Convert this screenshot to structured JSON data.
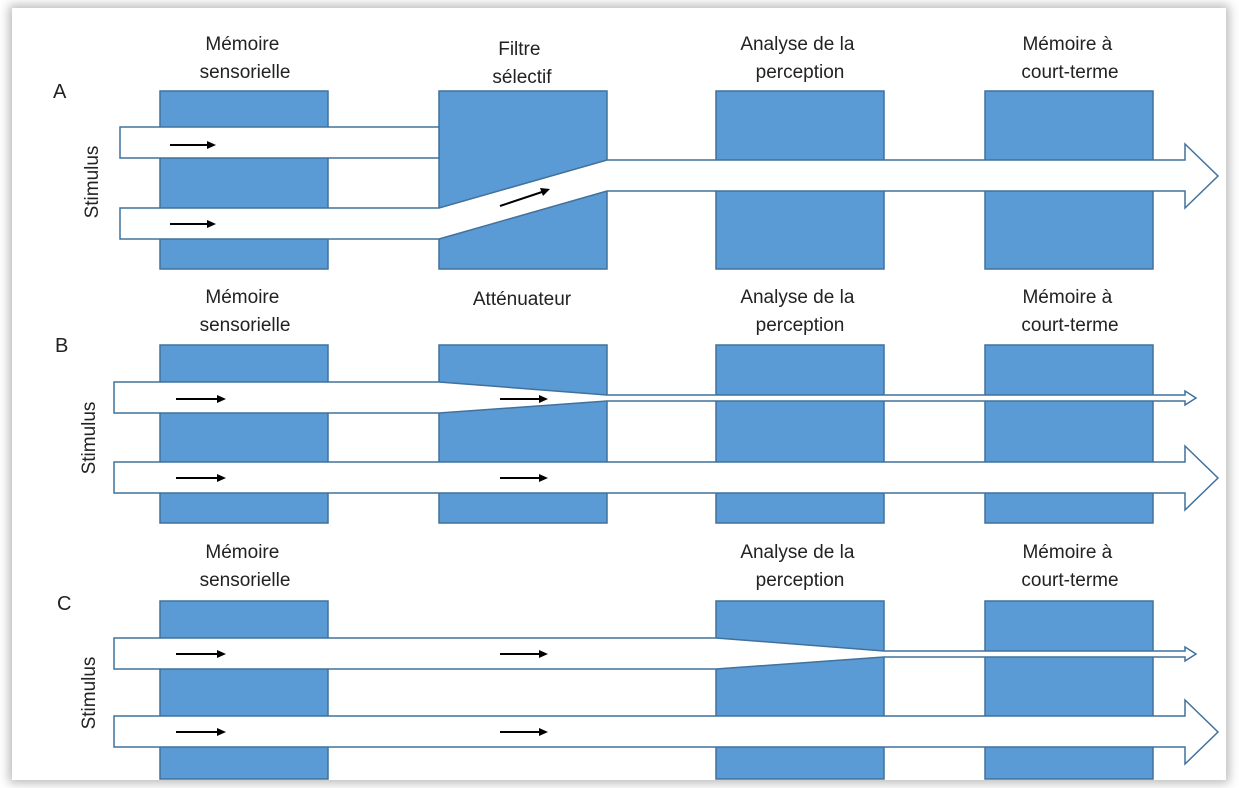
{
  "panels": [
    {
      "letter": "A",
      "stimulus": "Stimulus",
      "stage1": [
        "Mémoire",
        "sensorielle"
      ],
      "stage2": [
        "Filtre",
        "sélectif"
      ],
      "stage3": [
        "Analyse de la",
        "perception"
      ],
      "stage4": [
        "Mémoire à",
        "court-terme"
      ]
    },
    {
      "letter": "B",
      "stimulus": "Stimulus",
      "stage1": [
        "Mémoire",
        "sensorielle"
      ],
      "stage2": [
        "Atténuateur"
      ],
      "stage3": [
        "Analyse de la",
        "perception"
      ],
      "stage4": [
        "Mémoire à",
        "court-terme"
      ]
    },
    {
      "letter": "C",
      "stimulus": "Stimulus",
      "stage1": [
        "Mémoire",
        "sensorielle"
      ],
      "stage3": [
        "Analyse de la",
        "perception"
      ],
      "stage4": [
        "Mémoire à",
        "court-terme"
      ]
    }
  ],
  "colors": {
    "box_fill": "#5b9bd5",
    "box_stroke": "#41719c",
    "channel_fill": "#ffffff",
    "channel_stroke": "#41719c",
    "arrow": "#000000",
    "text": "#222222"
  }
}
